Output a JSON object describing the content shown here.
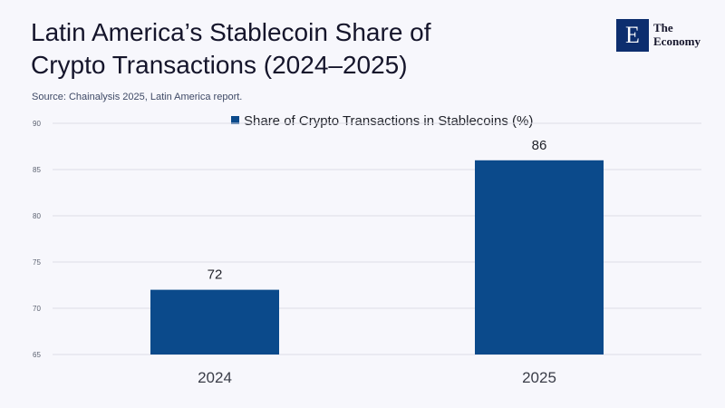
{
  "title_line1": "Latin America’s Stablecoin Share of",
  "title_line2": "Crypto Transactions (2024–2025)",
  "source": "Source: Chainalysis 2025, Latin America report.",
  "logo": {
    "mark": "E",
    "line1": "The",
    "line2": "Economy"
  },
  "colors": {
    "bar": "#0b4a8b",
    "grid": "#dcdce6",
    "background": "#f7f7fc"
  },
  "chart_data": {
    "type": "bar",
    "title": "Latin America’s Stablecoin Share of Crypto Transactions (2024–2025)",
    "categories": [
      "2024",
      "2025"
    ],
    "series": [
      {
        "name": "Share of Crypto Transactions in Stablecoins (%)",
        "values": [
          72,
          86
        ]
      }
    ],
    "data_labels": [
      "72",
      "86"
    ],
    "ylim": [
      65,
      90
    ],
    "yticks": [
      65,
      70,
      75,
      80,
      85,
      90
    ],
    "grid": true,
    "legend": "top-center"
  }
}
